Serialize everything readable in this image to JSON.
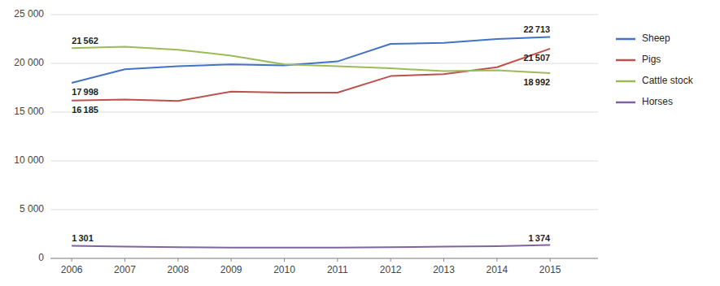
{
  "chart_data": {
    "type": "line",
    "x": [
      2006,
      2007,
      2008,
      2009,
      2010,
      2011,
      2012,
      2013,
      2014,
      2015
    ],
    "xlim": [
      2005.6,
      2015.9
    ],
    "xticks": [
      2006,
      2007,
      2008,
      2009,
      2010,
      2011,
      2012,
      2013,
      2014,
      2015
    ],
    "ylim": [
      0,
      25000
    ],
    "yticks": [
      0,
      {
        "value": 5000,
        "label": "5 000"
      },
      {
        "value": 10000,
        "label": "10 000"
      },
      {
        "value": 15000,
        "label": "15 000"
      },
      {
        "value": 20000,
        "label": "20 000"
      },
      {
        "value": 25000,
        "label": "25 000"
      }
    ],
    "grid": true,
    "legend": "right",
    "series": [
      {
        "name": "Sheep",
        "color": "#4472C4",
        "values": [
          17998,
          19400,
          19700,
          19900,
          19800,
          20200,
          22000,
          22100,
          22500,
          22713
        ]
      },
      {
        "name": "Pigs",
        "color": "#C0504D",
        "values": [
          16185,
          16300,
          16150,
          17100,
          17000,
          17000,
          18700,
          18900,
          19600,
          21507
        ]
      },
      {
        "name": "Cattle stock",
        "color": "#9BBB59",
        "values": [
          21562,
          21700,
          21400,
          20800,
          19900,
          19700,
          19500,
          19200,
          19300,
          18992
        ]
      },
      {
        "name": "Horses",
        "color": "#8064A2",
        "values": [
          1301,
          1200,
          1150,
          1100,
          1100,
          1100,
          1150,
          1200,
          1250,
          1374
        ]
      }
    ],
    "annotations": [
      {
        "text": "21 562",
        "x": 2006,
        "y": 21562
      },
      {
        "text": "17 998",
        "x": 2006,
        "y": 17998
      },
      {
        "text": "16 185",
        "x": 2006,
        "y": 16185
      },
      {
        "text": "1 301",
        "x": 2006,
        "y": 1301
      },
      {
        "text": "22 713",
        "x": 2015,
        "y": 22713
      },
      {
        "text": "21 507",
        "x": 2015,
        "y": 21507
      },
      {
        "text": "18 992",
        "x": 2015,
        "y": 18992
      },
      {
        "text": "1 374",
        "x": 2015,
        "y": 1374
      }
    ]
  }
}
